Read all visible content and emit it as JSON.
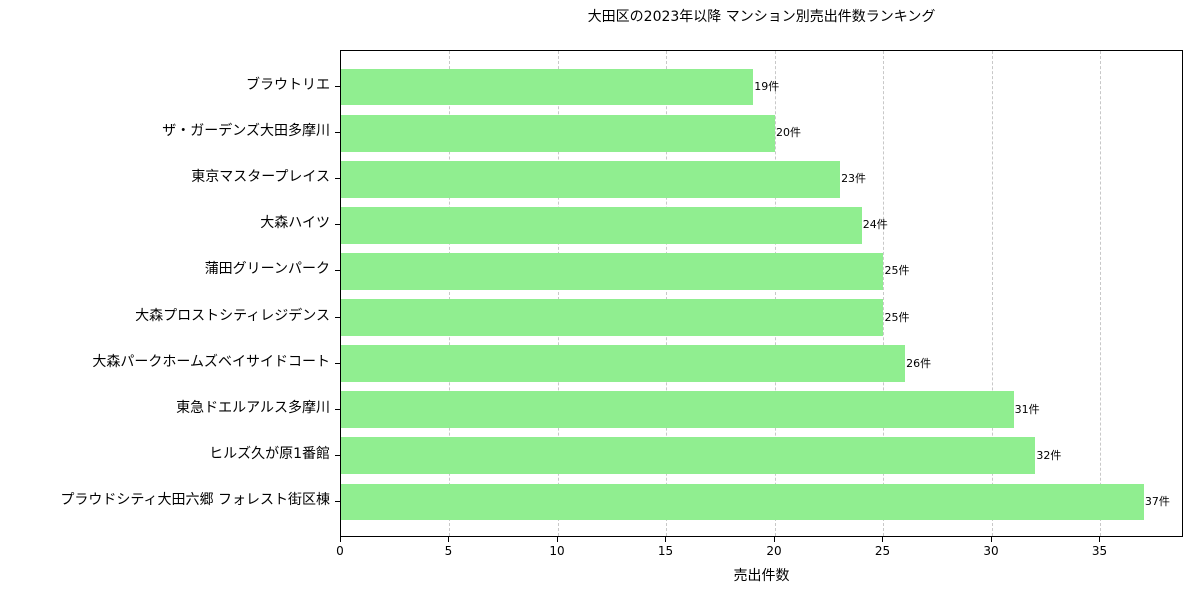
{
  "chart_data": {
    "type": "bar",
    "orientation": "horizontal",
    "title": "大田区の2023年以降 マンション別売出件数ランキング",
    "xlabel": "売出件数",
    "ylabel": "",
    "xlim": [
      0,
      38.85
    ],
    "xticks": [
      0,
      5,
      10,
      15,
      20,
      25,
      30,
      35
    ],
    "grid": {
      "x": true,
      "y": false,
      "style": "dashed"
    },
    "bar_color": "#90ee90",
    "value_suffix": "件",
    "categories": [
      "ブラウトリエ",
      "ザ・ガーデンズ大田多摩川",
      "東京マスタープレイス",
      "大森ハイツ",
      "蒲田グリーンパーク",
      "大森プロストシティレジデンス",
      "大森パークホームズベイサイドコート",
      "東急ドエルアルス多摩川",
      "ヒルズ久が原1番館",
      "プラウドシティ大田六郷 フォレスト街区棟"
    ],
    "values": [
      19,
      20,
      23,
      24,
      25,
      25,
      26,
      31,
      32,
      37
    ],
    "labels": [
      "19件",
      "20件",
      "23件",
      "24件",
      "25件",
      "25件",
      "26件",
      "31件",
      "32件",
      "37件"
    ]
  }
}
